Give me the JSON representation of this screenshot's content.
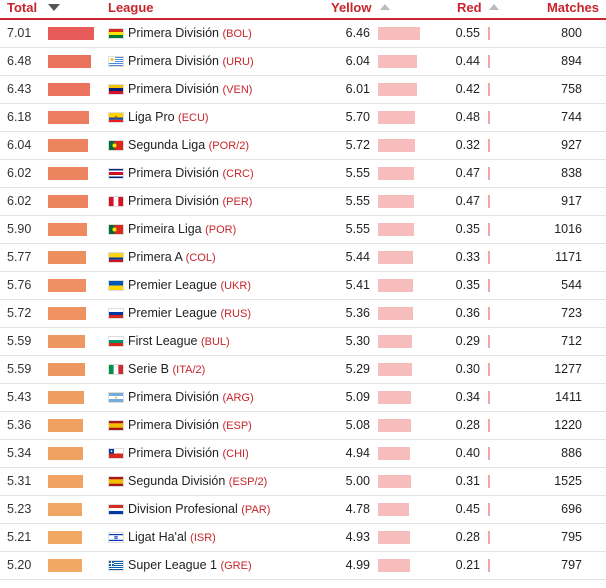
{
  "header": {
    "total": "Total",
    "league": "League",
    "yellow": "Yellow",
    "red": "Red",
    "matches": "Matches"
  },
  "rows": [
    {
      "total": "7.01",
      "flag": "BOL",
      "league": "Primera División",
      "code": "(BOL)",
      "yellow": "6.46",
      "red": "0.55",
      "matches": "800"
    },
    {
      "total": "6.48",
      "flag": "URU",
      "league": "Primera División",
      "code": "(URU)",
      "yellow": "6.04",
      "red": "0.44",
      "matches": "894"
    },
    {
      "total": "6.43",
      "flag": "VEN",
      "league": "Primera División",
      "code": "(VEN)",
      "yellow": "6.01",
      "red": "0.42",
      "matches": "758"
    },
    {
      "total": "6.18",
      "flag": "ECU",
      "league": "Liga Pro",
      "code": "(ECU)",
      "yellow": "5.70",
      "red": "0.48",
      "matches": "744"
    },
    {
      "total": "6.04",
      "flag": "POR",
      "league": "Segunda Liga",
      "code": "(POR/2)",
      "yellow": "5.72",
      "red": "0.32",
      "matches": "927"
    },
    {
      "total": "6.02",
      "flag": "CRC",
      "league": "Primera División",
      "code": "(CRC)",
      "yellow": "5.55",
      "red": "0.47",
      "matches": "838"
    },
    {
      "total": "6.02",
      "flag": "PER",
      "league": "Primera División",
      "code": "(PER)",
      "yellow": "5.55",
      "red": "0.47",
      "matches": "917"
    },
    {
      "total": "5.90",
      "flag": "POR",
      "league": "Primeira Liga",
      "code": "(POR)",
      "yellow": "5.55",
      "red": "0.35",
      "matches": "1016"
    },
    {
      "total": "5.77",
      "flag": "COL",
      "league": "Primera A",
      "code": "(COL)",
      "yellow": "5.44",
      "red": "0.33",
      "matches": "1171"
    },
    {
      "total": "5.76",
      "flag": "UKR",
      "league": "Premier League",
      "code": "(UKR)",
      "yellow": "5.41",
      "red": "0.35",
      "matches": "544"
    },
    {
      "total": "5.72",
      "flag": "RUS",
      "league": "Premier League",
      "code": "(RUS)",
      "yellow": "5.36",
      "red": "0.36",
      "matches": "723"
    },
    {
      "total": "5.59",
      "flag": "BUL",
      "league": "First League",
      "code": "(BUL)",
      "yellow": "5.30",
      "red": "0.29",
      "matches": "712"
    },
    {
      "total": "5.59",
      "flag": "ITA",
      "league": "Serie B",
      "code": "(ITA/2)",
      "yellow": "5.29",
      "red": "0.30",
      "matches": "1277"
    },
    {
      "total": "5.43",
      "flag": "ARG",
      "league": "Primera División",
      "code": "(ARG)",
      "yellow": "5.09",
      "red": "0.34",
      "matches": "1411"
    },
    {
      "total": "5.36",
      "flag": "ESP",
      "league": "Primera División",
      "code": "(ESP)",
      "yellow": "5.08",
      "red": "0.28",
      "matches": "1220"
    },
    {
      "total": "5.34",
      "flag": "CHI",
      "league": "Primera División",
      "code": "(CHI)",
      "yellow": "4.94",
      "red": "0.40",
      "matches": "886"
    },
    {
      "total": "5.31",
      "flag": "ESP",
      "league": "Segunda División",
      "code": "(ESP/2)",
      "yellow": "5.00",
      "red": "0.31",
      "matches": "1525"
    },
    {
      "total": "5.23",
      "flag": "PAR",
      "league": "Division Profesional",
      "code": "(PAR)",
      "yellow": "4.78",
      "red": "0.45",
      "matches": "696"
    },
    {
      "total": "5.21",
      "flag": "ISR",
      "league": "Ligat Ha'al",
      "code": "(ISR)",
      "yellow": "4.93",
      "red": "0.28",
      "matches": "795"
    },
    {
      "total": "5.20",
      "flag": "GRE",
      "league": "Super League 1",
      "code": "(GRE)",
      "yellow": "4.99",
      "red": "0.21",
      "matches": "797"
    }
  ],
  "colors": {
    "accent": "#c8242b",
    "total_bar_high": "#e85b5b",
    "total_bar_low": "#f0a863",
    "yellow_bar": "#f7bcbc",
    "red_bar": "#f4a7a7"
  }
}
